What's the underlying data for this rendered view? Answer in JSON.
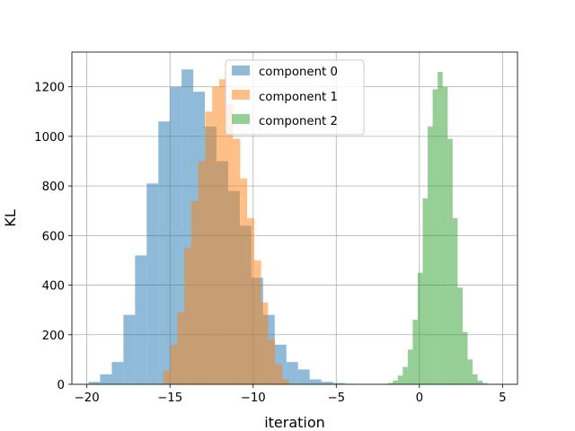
{
  "chart_data": {
    "type": "bar",
    "title": "",
    "xlabel": "iteration",
    "ylabel": "KL",
    "xlim": [
      -20.9,
      5.9
    ],
    "ylim": [
      0,
      1340
    ],
    "xticks": [
      -20,
      -15,
      -10,
      -5,
      0,
      5
    ],
    "xtick_labels": [
      "−20",
      "−15",
      "−10",
      "−5",
      "0",
      "5"
    ],
    "yticks": [
      0,
      200,
      400,
      600,
      800,
      1000,
      1200
    ],
    "ytick_labels": [
      "0",
      "200",
      "400",
      "600",
      "800",
      "1000",
      "1200"
    ],
    "grid": true,
    "legend_position": "top-center",
    "series": [
      {
        "name": "component 0",
        "color": "#1f77b4",
        "opacity": 0.5,
        "bin_edges": [
          -19.9,
          -19.2,
          -18.5,
          -17.8,
          -17.1,
          -16.4,
          -15.7,
          -15.0,
          -14.3,
          -13.6,
          -12.9,
          -12.2,
          -11.5,
          -10.8,
          -10.1,
          -9.4,
          -8.7,
          -8.0,
          -7.3,
          -6.6,
          -5.9,
          -5.2,
          -4.5,
          -3.8
        ],
        "counts": [
          10,
          40,
          90,
          280,
          520,
          810,
          1060,
          1200,
          1270,
          1180,
          1040,
          900,
          780,
          640,
          430,
          280,
          160,
          90,
          60,
          20,
          10,
          5,
          2
        ]
      },
      {
        "name": "component 1",
        "color": "#ff7f0e",
        "opacity": 0.5,
        "bin_edges": [
          -15.4,
          -14.98,
          -14.56,
          -14.14,
          -13.72,
          -13.3,
          -12.88,
          -12.46,
          -12.04,
          -11.62,
          -11.2,
          -10.78,
          -10.36,
          -9.94,
          -9.52,
          -9.1,
          -8.68,
          -8.26,
          -7.86
        ],
        "counts": [
          55,
          160,
          290,
          550,
          740,
          900,
          1100,
          1200,
          1230,
          1130,
          990,
          830,
          670,
          500,
          330,
          180,
          80,
          20
        ]
      },
      {
        "name": "component 2",
        "color": "#2ca02c",
        "opacity": 0.5,
        "bin_edges": [
          -1.9,
          -1.6,
          -1.3,
          -1.0,
          -0.7,
          -0.4,
          -0.1,
          0.2,
          0.5,
          0.8,
          1.1,
          1.4,
          1.7,
          2.0,
          2.3,
          2.6,
          2.9,
          3.2,
          3.5,
          3.8,
          4.1
        ],
        "counts": [
          5,
          15,
          35,
          70,
          140,
          260,
          450,
          750,
          1040,
          1190,
          1260,
          1200,
          990,
          670,
          390,
          210,
          100,
          40,
          15,
          5
        ]
      }
    ]
  }
}
